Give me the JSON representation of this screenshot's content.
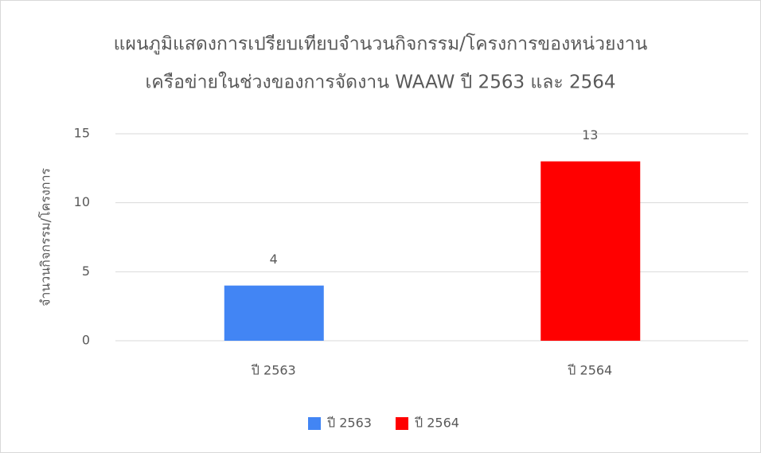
{
  "chart_data": {
    "type": "bar",
    "title": [
      "แผนภูมิแสดงการเปรียบเทียบจำนวนกิจกรรม/โครงการของหน่วยงาน",
      "เครือข่ายในช่วงของการจัดงาน WAAW ปี 2563 และ 2564"
    ],
    "y_label": "จำนวนกิจกรรม/โครงการ",
    "categories": [
      "ปี 2563",
      "ปี 2564"
    ],
    "series": [
      {
        "name": "ปี 2563",
        "color": "#4285f4",
        "values": [
          4,
          null
        ]
      },
      {
        "name": "ปี 2564",
        "color": "#ff0000",
        "values": [
          null,
          13
        ]
      }
    ],
    "ylim": [
      0,
      15
    ],
    "yticks": [
      0,
      5,
      10,
      15
    ],
    "grid": true,
    "legend": "bottom"
  }
}
